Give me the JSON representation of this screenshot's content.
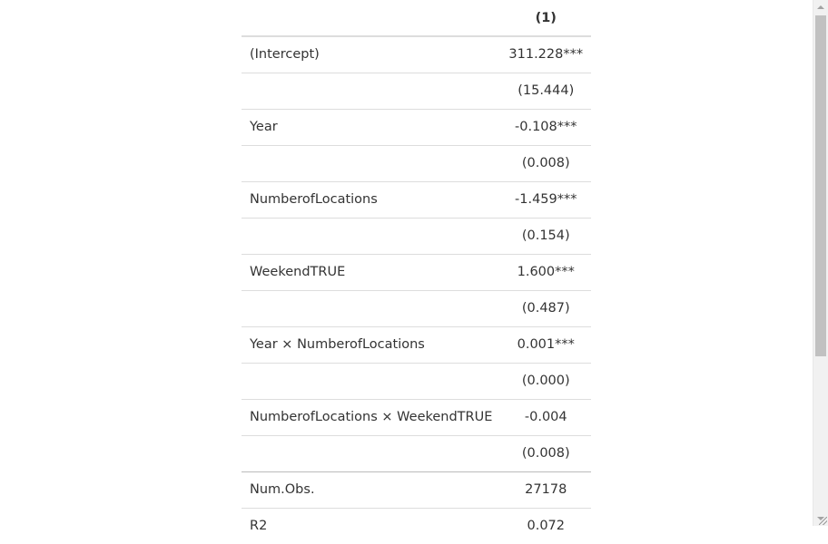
{
  "table": {
    "header": [
      "",
      "(1)"
    ],
    "rows": [
      {
        "label": "(Intercept)",
        "value": "311.228***"
      },
      {
        "label": "",
        "value": "(15.444)"
      },
      {
        "label": "Year",
        "value": "-0.108***"
      },
      {
        "label": "",
        "value": "(0.008)"
      },
      {
        "label": "NumberofLocations",
        "value": "-1.459***"
      },
      {
        "label": "",
        "value": "(0.154)"
      },
      {
        "label": "WeekendTRUE",
        "value": "1.600***"
      },
      {
        "label": "",
        "value": "(0.487)"
      },
      {
        "label": "Year × NumberofLocations",
        "value": "0.001***"
      },
      {
        "label": "",
        "value": "(0.000)"
      },
      {
        "label": "NumberofLocations × WeekendTRUE",
        "value": "-0.004"
      },
      {
        "label": "",
        "value": "(0.008)"
      },
      {
        "label": "Num.Obs.",
        "value": "27178"
      },
      {
        "label": "R2",
        "value": "0.072"
      }
    ]
  }
}
